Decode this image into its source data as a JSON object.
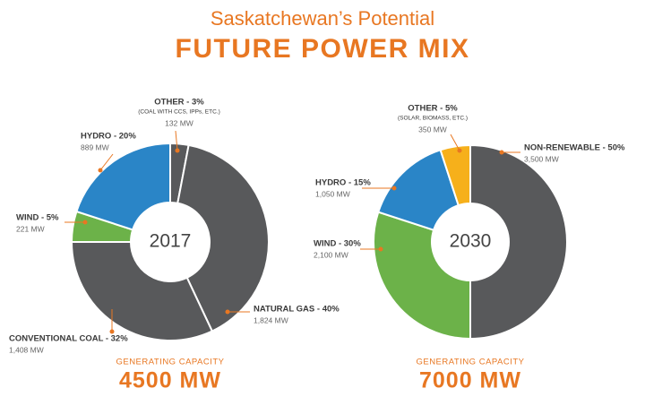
{
  "title": "Saskatchewan’s Potential",
  "heading": "FUTURE POWER MIX",
  "chart_data": [
    {
      "type": "pie",
      "center_label": "2017",
      "values": [
        3,
        40,
        32,
        5,
        20
      ],
      "value_labels": [
        "OTHER - 3%",
        "NATURAL GAS - 40%",
        "CONVENTIONAL COAL - 32%",
        "WIND - 5%",
        "HYDRO - 20%"
      ],
      "mw_labels": [
        "132 MW",
        "1,824 MW",
        "1,408 MW",
        "221 MW",
        "889 MW"
      ],
      "other_note": "(COAL WITH CCS, IPPs, ETC.)",
      "colors": [
        "#58595b",
        "#58595b",
        "#58595b",
        "#6cb249",
        "#2a85c7"
      ],
      "caption": "GENERATING CAPACITY",
      "total": "4500 MW"
    },
    {
      "type": "pie",
      "center_label": "2030",
      "values": [
        50,
        30,
        15,
        5
      ],
      "value_labels": [
        "NON-RENEWABLE - 50%",
        "WIND - 30%",
        "HYDRO - 15%",
        "OTHER - 5%"
      ],
      "mw_labels": [
        "3,500 MW",
        "2,100 MW",
        "1,050 MW",
        "350 MW"
      ],
      "other_note": "(SOLAR, BIOMASS, ETC.)",
      "colors": [
        "#58595b",
        "#6cb249",
        "#2a85c7",
        "#f6b01b"
      ],
      "caption": "GENERATING CAPACITY",
      "total": "7000 MW"
    }
  ]
}
